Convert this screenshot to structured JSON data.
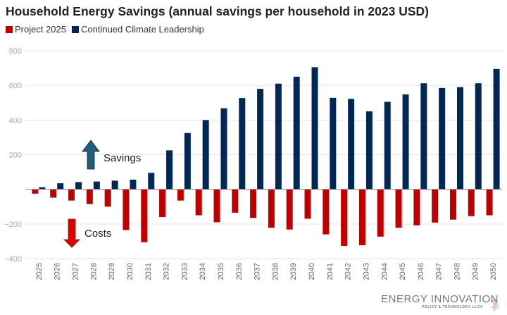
{
  "chart_data": {
    "type": "bar",
    "title": "Household Energy Savings (annual savings per household in 2023 USD)",
    "xlabel": "",
    "ylabel": "",
    "ylim": [
      -400,
      800
    ],
    "yticks": [
      -400,
      -200,
      0,
      200,
      400,
      600,
      800
    ],
    "ytick_labels": [
      "−400",
      "−200",
      "",
      "200",
      "400",
      "600",
      "800"
    ],
    "grid": true,
    "legend": "top-left",
    "categories": [
      "2025",
      "2026",
      "2027",
      "2028",
      "2029",
      "2030",
      "2031",
      "2032",
      "2033",
      "2034",
      "2035",
      "2036",
      "2037",
      "2038",
      "2039",
      "2040",
      "2041",
      "2042",
      "2043",
      "2044",
      "2045",
      "2046",
      "2047",
      "2048",
      "2049",
      "2050"
    ],
    "series": [
      {
        "name": "Project 2025",
        "color": "#c00000",
        "values": [
          -25,
          -48,
          -65,
          -85,
          -100,
          -235,
          -305,
          -160,
          -65,
          -150,
          -190,
          -135,
          -165,
          -222,
          -232,
          -170,
          -260,
          -327,
          -323,
          -273,
          -222,
          -208,
          -192,
          -175,
          -155,
          -150
        ]
      },
      {
        "name": "Continued Climate Leadership",
        "color": "#002855",
        "values": [
          12,
          35,
          42,
          45,
          50,
          56,
          95,
          225,
          325,
          400,
          468,
          527,
          580,
          610,
          650,
          705,
          528,
          522,
          450,
          505,
          548,
          612,
          585,
          590,
          612,
          695
        ]
      }
    ],
    "annotations": [
      {
        "text": "Savings",
        "arrow": "up",
        "color": "#1f5f7a"
      },
      {
        "text": "Costs",
        "arrow": "down",
        "color": "#e00000"
      }
    ]
  },
  "logo": {
    "name": "ENERGY INNOVATION",
    "tagline": "POLICY & TECHNOLOGY LLC®"
  }
}
